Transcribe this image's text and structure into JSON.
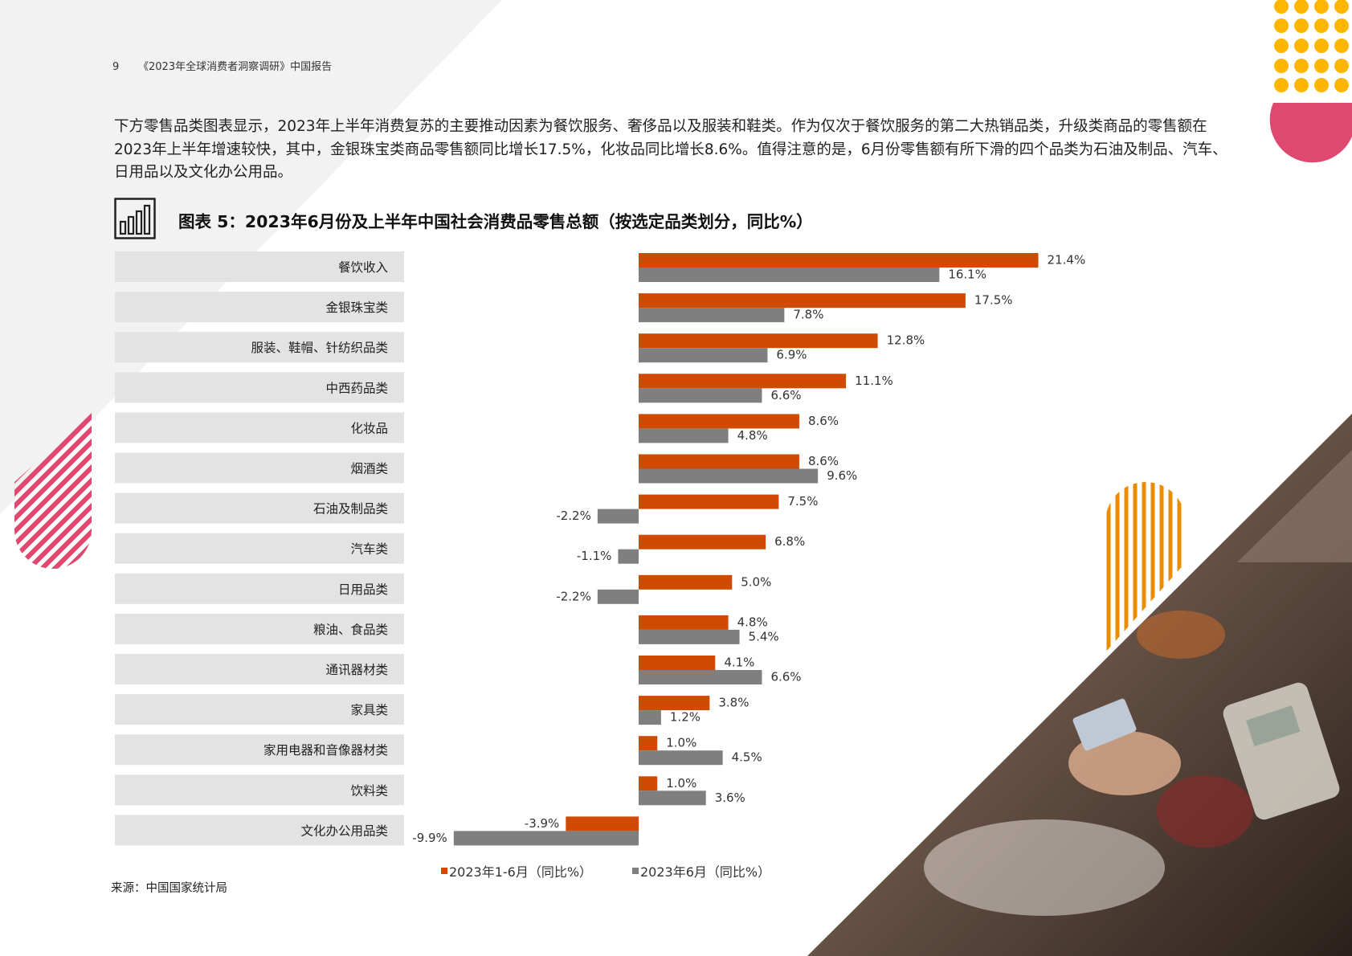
{
  "header": {
    "page_number": "9",
    "report_title": "《2023年全球消费者洞察调研》中国报告"
  },
  "intro_text": "下方零售品类图表显示，2023年上半年消费复苏的主要推动因素为餐饮服务、奢侈品以及服装和鞋类。作为仅次于餐饮服务的第二大热销品类，升级类商品的零售额在2023年上半年增速较快，其中，金银珠宝类商品零售额同比增长17.5%，化妆品同比增长8.6%。值得注意的是，6月份零售额有所下滑的四个品类为石油及制品、汽车、日用品以及文化办公用品。",
  "figure": {
    "icon": "bar-chart-icon",
    "title": "图表 5：2023年6月份及上半年中国社会消费品零售总额（按选定品类划分，同比%）"
  },
  "source": "来源：中国国家统计局",
  "colors": {
    "series_h1": "#d04a02",
    "series_june": "#7f7f7f",
    "label_box": "#e3e3e3",
    "accent_yellow": "#ffb600",
    "accent_pink": "#e0496f",
    "accent_orange": "#eb8c00",
    "bg_triangle": "#f2f2f2"
  },
  "chart_data": {
    "type": "bar",
    "orientation": "horizontal",
    "categories": [
      "餐饮收入",
      "金银珠宝类",
      "服装、鞋帽、针纺织品类",
      "中西药品类",
      "化妆品",
      "烟酒类",
      "石油及制品类",
      "汽车类",
      "日用品类",
      "粮油、食品类",
      "通讯器材类",
      "家具类",
      "家用电器和音像器材类",
      "饮料类",
      "文化办公用品类"
    ],
    "series": [
      {
        "name": "2023年1-6月（同比%）",
        "values": [
          21.4,
          17.5,
          12.8,
          11.1,
          8.6,
          8.6,
          7.5,
          6.8,
          5.0,
          4.8,
          4.1,
          3.8,
          1.0,
          1.0,
          -3.9
        ],
        "labels": [
          "21.4%",
          "17.5%",
          "12.8%",
          "11.1%",
          "8.6%",
          "8.6%",
          "7.5%",
          "6.8%",
          "5.0%",
          "4.8%",
          "4.1%",
          "3.8%",
          "1.0%",
          "1.0%",
          "-3.9%"
        ]
      },
      {
        "name": "2023年6月（同比%）",
        "values": [
          16.1,
          7.8,
          6.9,
          6.6,
          4.8,
          9.6,
          -2.2,
          -1.1,
          -2.2,
          5.4,
          6.6,
          1.2,
          4.5,
          3.6,
          -9.9
        ],
        "labels": [
          "16.1%",
          "7.8%",
          "6.9%",
          "6.6%",
          "4.8%",
          "9.6%",
          "-2.2%",
          "-1.1%",
          "-2.2%",
          "5.4%",
          "6.6%",
          "1.2%",
          "4.5%",
          "3.6%",
          "-9.9%"
        ]
      }
    ],
    "xlim": [
      -9.9,
      21.4
    ],
    "legend_position": "bottom",
    "grid": false
  }
}
